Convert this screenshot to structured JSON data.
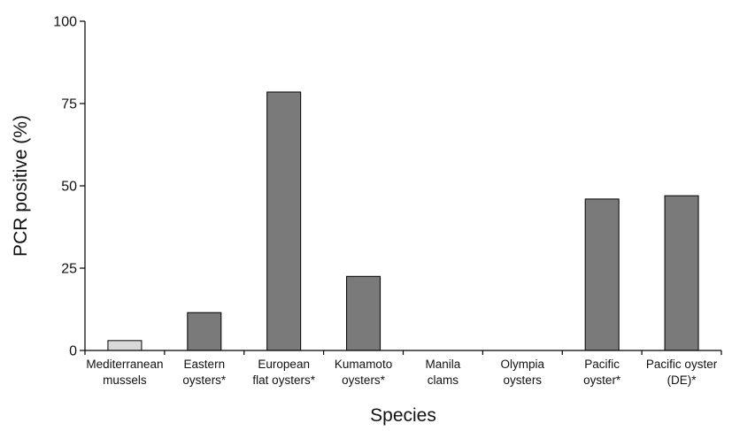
{
  "chart_data": {
    "type": "bar",
    "title": "",
    "xlabel": "Species",
    "ylabel": "PCR positive (%)",
    "ylim": [
      0,
      100
    ],
    "yticks": [
      0,
      25,
      50,
      75,
      100
    ],
    "grid": false,
    "legend": "none",
    "categories": [
      [
        "Mediterranean",
        "mussels"
      ],
      [
        "Eastern",
        "oysters*"
      ],
      [
        "European",
        "flat oysters*"
      ],
      [
        "Kumamoto",
        "oysters*"
      ],
      [
        "Manila",
        "clams"
      ],
      [
        "Olympia",
        "oysters"
      ],
      [
        "Pacific",
        "oyster*"
      ],
      [
        "Pacific oyster",
        "(DE)*"
      ]
    ],
    "values": [
      3,
      11.5,
      78.5,
      22.5,
      0,
      0,
      46,
      47
    ],
    "bar_colors": [
      "#d9d9d9",
      "#7a7a7a",
      "#7a7a7a",
      "#7a7a7a",
      "#7a7a7a",
      "#7a7a7a",
      "#7a7a7a",
      "#7a7a7a"
    ],
    "bar_stroke": "#000000"
  }
}
